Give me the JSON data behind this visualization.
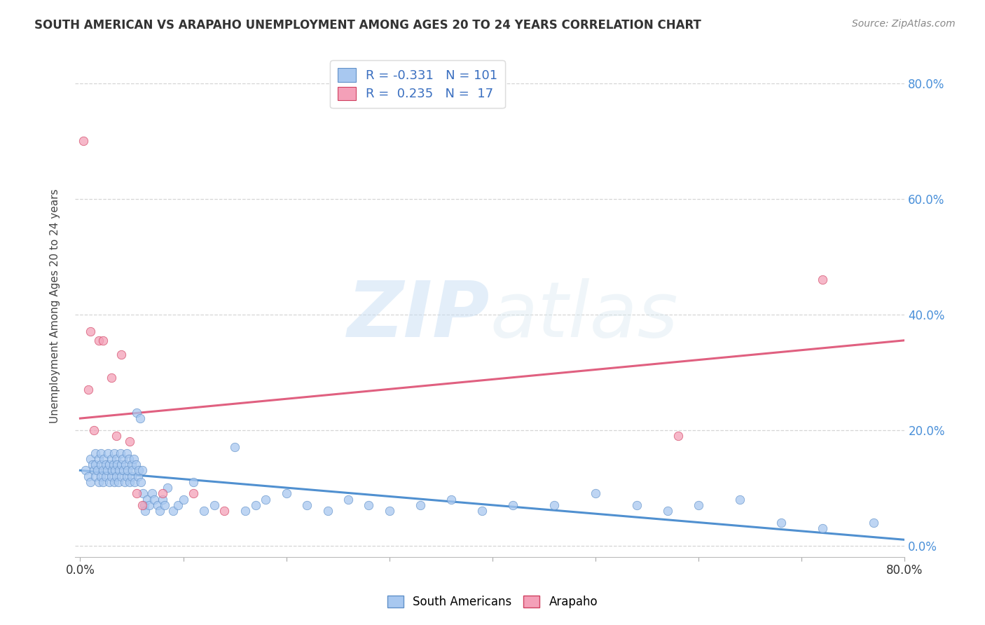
{
  "title": "SOUTH AMERICAN VS ARAPAHO UNEMPLOYMENT AMONG AGES 20 TO 24 YEARS CORRELATION CHART",
  "source": "Source: ZipAtlas.com",
  "ylabel": "Unemployment Among Ages 20 to 24 years",
  "legend_bottom": [
    "South Americans",
    "Arapaho"
  ],
  "blue_R": "-0.331",
  "blue_N": "101",
  "pink_R": "0.235",
  "pink_N": "17",
  "blue_color": "#a8c8f0",
  "pink_color": "#f4a0b8",
  "blue_line_color": "#5090d0",
  "pink_line_color": "#e06080",
  "blue_edge_color": "#6090c8",
  "pink_edge_color": "#d04060",
  "watermark_zip": "ZIP",
  "watermark_atlas": "atlas",
  "blue_scatter_x": [
    0.005,
    0.008,
    0.01,
    0.01,
    0.012,
    0.013,
    0.015,
    0.015,
    0.015,
    0.017,
    0.018,
    0.018,
    0.02,
    0.02,
    0.02,
    0.022,
    0.022,
    0.023,
    0.025,
    0.025,
    0.026,
    0.027,
    0.028,
    0.028,
    0.03,
    0.03,
    0.031,
    0.032,
    0.033,
    0.033,
    0.034,
    0.035,
    0.035,
    0.036,
    0.037,
    0.038,
    0.039,
    0.04,
    0.04,
    0.041,
    0.042,
    0.043,
    0.044,
    0.045,
    0.045,
    0.046,
    0.047,
    0.048,
    0.05,
    0.05,
    0.051,
    0.052,
    0.053,
    0.054,
    0.055,
    0.056,
    0.057,
    0.058,
    0.059,
    0.06,
    0.061,
    0.062,
    0.063,
    0.065,
    0.067,
    0.07,
    0.072,
    0.075,
    0.077,
    0.08,
    0.082,
    0.085,
    0.09,
    0.095,
    0.1,
    0.11,
    0.12,
    0.13,
    0.15,
    0.16,
    0.17,
    0.18,
    0.2,
    0.22,
    0.24,
    0.26,
    0.28,
    0.3,
    0.33,
    0.36,
    0.39,
    0.42,
    0.46,
    0.5,
    0.54,
    0.57,
    0.6,
    0.64,
    0.68,
    0.72,
    0.77
  ],
  "blue_scatter_y": [
    0.13,
    0.12,
    0.15,
    0.11,
    0.14,
    0.13,
    0.16,
    0.12,
    0.14,
    0.13,
    0.15,
    0.11,
    0.14,
    0.12,
    0.16,
    0.13,
    0.11,
    0.15,
    0.14,
    0.12,
    0.13,
    0.16,
    0.11,
    0.14,
    0.15,
    0.12,
    0.13,
    0.14,
    0.11,
    0.16,
    0.13,
    0.15,
    0.12,
    0.14,
    0.11,
    0.13,
    0.16,
    0.14,
    0.12,
    0.15,
    0.13,
    0.11,
    0.14,
    0.16,
    0.12,
    0.13,
    0.15,
    0.11,
    0.14,
    0.12,
    0.13,
    0.15,
    0.11,
    0.14,
    0.23,
    0.12,
    0.13,
    0.22,
    0.11,
    0.13,
    0.09,
    0.07,
    0.06,
    0.08,
    0.07,
    0.09,
    0.08,
    0.07,
    0.06,
    0.08,
    0.07,
    0.1,
    0.06,
    0.07,
    0.08,
    0.11,
    0.06,
    0.07,
    0.17,
    0.06,
    0.07,
    0.08,
    0.09,
    0.07,
    0.06,
    0.08,
    0.07,
    0.06,
    0.07,
    0.08,
    0.06,
    0.07,
    0.07,
    0.09,
    0.07,
    0.06,
    0.07,
    0.08,
    0.04,
    0.03,
    0.04
  ],
  "pink_scatter_x": [
    0.003,
    0.008,
    0.01,
    0.013,
    0.018,
    0.022,
    0.03,
    0.035,
    0.04,
    0.048,
    0.055,
    0.06,
    0.08,
    0.11,
    0.14,
    0.58,
    0.72
  ],
  "pink_scatter_y": [
    0.7,
    0.27,
    0.37,
    0.2,
    0.355,
    0.355,
    0.29,
    0.19,
    0.33,
    0.18,
    0.09,
    0.07,
    0.09,
    0.09,
    0.06,
    0.19,
    0.46
  ],
  "blue_line_x0": 0.0,
  "blue_line_x1": 0.8,
  "blue_line_y0": 0.13,
  "blue_line_y1": 0.01,
  "pink_line_x0": 0.0,
  "pink_line_x1": 0.8,
  "pink_line_y0": 0.22,
  "pink_line_y1": 0.355,
  "xmin": -0.005,
  "xmax": 0.8,
  "ymin": -0.02,
  "ymax": 0.85,
  "ytick_vals": [
    0.0,
    0.2,
    0.4,
    0.6,
    0.8
  ],
  "xtick_minor_vals": [
    0.0,
    0.1,
    0.2,
    0.3,
    0.4,
    0.5,
    0.6,
    0.7,
    0.8
  ],
  "right_ytick_color": "#4a90d9",
  "bottom_xtick_color": "#333333"
}
